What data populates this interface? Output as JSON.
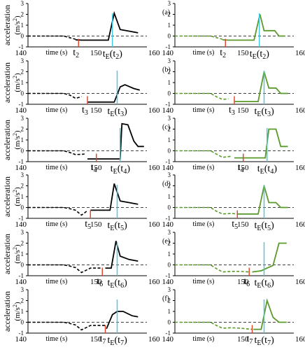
{
  "figure": {
    "ylabel_main": "acceleration",
    "ylabel_unit": "(m/s",
    "ylabel_exp": "2",
    "ylabel_close": ")",
    "xlabel": "time (s)",
    "event_prefix_E": "t",
    "event_prefix_i": "t"
  },
  "colors": {
    "black_curve": "#000000",
    "green_curve": "#5a9a2a",
    "red_marker": "#e04020",
    "cyan_marker": "#40c8e0",
    "zero_line": "#000000"
  },
  "chart_data": [
    {
      "panel": "a",
      "side": "left",
      "type": "line",
      "ylim": [
        -1,
        3
      ],
      "yticks": [
        "3",
        "2",
        "1",
        "0",
        "-1"
      ],
      "xlim": [
        140,
        160
      ],
      "xticks": [
        "140",
        "150",
        "160"
      ],
      "event": "2",
      "marker_red_x": 148.5,
      "marker_cyan_x": 154.2,
      "dashed": [
        [
          140,
          0
        ],
        [
          146,
          0
        ],
        [
          147,
          -0.15
        ],
        [
          148,
          -0.3
        ]
      ],
      "solid": [
        [
          148,
          -0.35
        ],
        [
          149,
          -0.38
        ],
        [
          153.5,
          -0.38
        ],
        [
          154.5,
          2.1
        ],
        [
          155.5,
          0.6
        ],
        [
          157,
          0.45
        ],
        [
          158.5,
          0.3
        ]
      ],
      "show_xlabel": true,
      "show_ylabel": false
    },
    {
      "panel": "a",
      "side": "right",
      "type": "line",
      "ylim": [
        -1,
        3
      ],
      "yticks": [
        "3",
        "2",
        "1",
        "0",
        "-1"
      ],
      "xlim": [
        140,
        160
      ],
      "xticks": [
        "140",
        "150",
        "160"
      ],
      "event": "2",
      "marker_red_x": 148.5,
      "marker_cyan_x": 154.2,
      "dashed": [
        [
          140,
          0
        ],
        [
          146,
          0
        ],
        [
          147,
          -0.15
        ],
        [
          148,
          -0.3
        ]
      ],
      "solid": [
        [
          148,
          -0.35
        ],
        [
          149,
          -0.38
        ],
        [
          153.3,
          -0.38
        ],
        [
          154.3,
          2.0
        ],
        [
          155,
          0.5
        ],
        [
          156.8,
          0.5
        ],
        [
          157.5,
          0.0
        ],
        [
          158.5,
          0.0
        ]
      ],
      "show_xlabel": true,
      "show_ylabel": false
    },
    {
      "panel": "b",
      "side": "left",
      "type": "line",
      "ylim": [
        -1,
        3
      ],
      "yticks": [
        "3",
        "2",
        "1",
        "0",
        "-1"
      ],
      "xlim": [
        140,
        160
      ],
      "xticks": [
        "140",
        "150",
        "160"
      ],
      "event": "3",
      "marker_red_x": 150,
      "marker_cyan_x": 155,
      "dashed": [
        [
          140,
          0
        ],
        [
          146,
          0
        ],
        [
          147,
          -0.15
        ],
        [
          148,
          -0.45
        ],
        [
          149,
          -0.3
        ]
      ],
      "solid": [
        [
          150,
          -0.8
        ],
        [
          154.5,
          -0.8
        ],
        [
          155.5,
          0.6
        ],
        [
          156.3,
          0.8
        ],
        [
          157.8,
          0.45
        ],
        [
          158.8,
          0.3
        ]
      ],
      "show_xlabel": false,
      "show_ylabel": true
    },
    {
      "panel": "b",
      "side": "right",
      "type": "line",
      "ylim": [
        -1,
        3
      ],
      "yticks": [
        "3",
        "2",
        "1",
        "0",
        "-1"
      ],
      "xlim": [
        140,
        160
      ],
      "xticks": [
        "140",
        "150",
        "160"
      ],
      "event": "3",
      "marker_red_x": 150,
      "marker_cyan_x": 155,
      "dashed": [
        [
          140,
          0
        ],
        [
          146,
          0
        ],
        [
          147,
          -0.3
        ],
        [
          148,
          -0.55
        ],
        [
          149,
          -0.5
        ]
      ],
      "solid": [
        [
          150,
          -0.75
        ],
        [
          154,
          -0.75
        ],
        [
          155,
          2.0
        ],
        [
          155.8,
          0.5
        ],
        [
          157,
          0.5
        ],
        [
          157.8,
          0.0
        ],
        [
          159,
          0.0
        ]
      ],
      "show_xlabel": false,
      "show_ylabel": false
    },
    {
      "panel": "c",
      "side": "left",
      "type": "line",
      "ylim": [
        -1,
        3
      ],
      "yticks": [
        "3",
        "2",
        "1",
        "0",
        "-1"
      ],
      "xlim": [
        140,
        160
      ],
      "xticks": [
        "140",
        "150",
        "160"
      ],
      "event": "4",
      "marker_red_x": 151.5,
      "marker_cyan_x": 155.5,
      "dashed": [
        [
          140,
          0
        ],
        [
          146,
          0
        ],
        [
          147,
          -0.15
        ],
        [
          148,
          -0.35
        ],
        [
          149.5,
          -0.3
        ]
      ],
      "solid": [
        [
          150,
          -0.75
        ],
        [
          155.5,
          -0.75
        ],
        [
          155.8,
          2.5
        ],
        [
          156.8,
          2.4
        ],
        [
          157.8,
          0.9
        ],
        [
          158.5,
          0.4
        ],
        [
          159.5,
          0.4
        ]
      ],
      "show_xlabel": true,
      "show_ylabel": false
    },
    {
      "panel": "c",
      "side": "right",
      "type": "line",
      "ylim": [
        -1,
        3
      ],
      "yticks": [
        "3",
        "2",
        "1",
        "0",
        "-1"
      ],
      "xlim": [
        140,
        160
      ],
      "xticks": [
        "140",
        "150",
        "160"
      ],
      "event": "4",
      "marker_red_x": 151.5,
      "marker_cyan_x": 155.5,
      "dashed": [
        [
          140,
          0
        ],
        [
          146,
          0
        ],
        [
          147,
          -0.3
        ],
        [
          148,
          -0.6
        ],
        [
          149.5,
          -0.5
        ]
      ],
      "solid": [
        [
          150,
          -0.65
        ],
        [
          155.2,
          -0.65
        ],
        [
          155.8,
          2.0
        ],
        [
          157,
          2.0
        ],
        [
          157.8,
          0.4
        ],
        [
          159,
          0.4
        ]
      ],
      "show_xlabel": false,
      "show_ylabel": false
    },
    {
      "panel": "d",
      "side": "left",
      "type": "line",
      "ylim": [
        -1,
        3
      ],
      "yticks": [
        "3",
        "2",
        "1",
        "0",
        "-1"
      ],
      "xlim": [
        140,
        160
      ],
      "xticks": [
        "140",
        "150",
        "160"
      ],
      "event": "5",
      "marker_red_x": 150.5,
      "marker_cyan_x": 155,
      "dashed": [
        [
          140,
          0
        ],
        [
          146,
          0
        ],
        [
          147,
          -0.1
        ],
        [
          148,
          -0.25
        ],
        [
          149,
          -0.7
        ],
        [
          150,
          -0.3
        ]
      ],
      "solid": [
        [
          150.5,
          -0.25
        ],
        [
          153.8,
          -0.25
        ],
        [
          154.5,
          2.2
        ],
        [
          155.5,
          0.6
        ],
        [
          157,
          0.45
        ],
        [
          158.5,
          0.3
        ]
      ],
      "show_xlabel": false,
      "show_ylabel": true
    },
    {
      "panel": "d",
      "side": "right",
      "type": "line",
      "ylim": [
        -1,
        3
      ],
      "yticks": [
        "3",
        "2",
        "1",
        "0",
        "-1"
      ],
      "xlim": [
        140,
        160
      ],
      "xticks": [
        "140",
        "150",
        "160"
      ],
      "event": "5",
      "marker_red_x": 150.5,
      "marker_cyan_x": 155,
      "dashed": [
        [
          140,
          0
        ],
        [
          146,
          0
        ],
        [
          147,
          -0.35
        ],
        [
          148,
          -0.6
        ],
        [
          149.5,
          -0.55
        ],
        [
          150.5,
          -0.6
        ]
      ],
      "solid": [
        [
          150.5,
          -0.6
        ],
        [
          154,
          -0.6
        ],
        [
          155,
          2.0
        ],
        [
          155.8,
          0.45
        ],
        [
          157,
          0.45
        ],
        [
          157.8,
          0.0
        ],
        [
          159,
          0.0
        ]
      ],
      "show_xlabel": true,
      "show_ylabel": false
    },
    {
      "panel": "e",
      "side": "left",
      "type": "line",
      "ylim": [
        -1,
        3
      ],
      "yticks": [
        "3",
        "2",
        "1",
        "0",
        "-1"
      ],
      "xlim": [
        140,
        160
      ],
      "xticks": [
        "140",
        "150",
        "160"
      ],
      "event": "6",
      "marker_red_x": 152.5,
      "marker_cyan_x": 155,
      "dashed": [
        [
          140,
          0
        ],
        [
          146,
          0
        ],
        [
          147,
          -0.1
        ],
        [
          148,
          -0.25
        ],
        [
          149,
          -0.7
        ],
        [
          150.5,
          -0.3
        ],
        [
          152.5,
          -0.3
        ]
      ],
      "solid": [
        [
          153,
          -0.3
        ],
        [
          154,
          -0.3
        ],
        [
          154.8,
          2.2
        ],
        [
          155.5,
          0.8
        ],
        [
          157,
          0.5
        ],
        [
          158.5,
          0.35
        ]
      ],
      "show_xlabel": true,
      "show_ylabel": false
    },
    {
      "panel": "e",
      "side": "right",
      "type": "line",
      "ylim": [
        -1,
        3
      ],
      "yticks": [
        "3",
        "2",
        "1",
        "0",
        "-1"
      ],
      "xlim": [
        140,
        160
      ],
      "xticks": [
        "140",
        "150",
        "160"
      ],
      "event": "6",
      "marker_red_x": 152.5,
      "marker_cyan_x": 155,
      "dashed": [
        [
          140,
          0
        ],
        [
          146,
          0
        ],
        [
          147,
          -0.35
        ],
        [
          148,
          -0.65
        ],
        [
          149.5,
          -0.6
        ],
        [
          151,
          -0.6
        ],
        [
          152.5,
          -0.65
        ]
      ],
      "solid": [
        [
          153,
          -0.65
        ],
        [
          154.5,
          -0.55
        ],
        [
          155.5,
          -0.3
        ],
        [
          156.5,
          -0.05
        ],
        [
          157.5,
          2.0
        ],
        [
          158.8,
          2.0
        ]
      ],
      "show_xlabel": false,
      "show_ylabel": false
    },
    {
      "panel": "f",
      "side": "left",
      "type": "line",
      "ylim": [
        -1,
        3
      ],
      "yticks": [
        "3",
        "2",
        "1",
        "0",
        "-1"
      ],
      "xlim": [
        140,
        160
      ],
      "xticks": [
        "140",
        "150",
        "160"
      ],
      "event": "7",
      "marker_red_x": 153,
      "marker_cyan_x": 155,
      "dashed": [
        [
          140,
          0
        ],
        [
          146,
          0
        ],
        [
          147,
          -0.1
        ],
        [
          148,
          -0.25
        ],
        [
          149,
          -0.7
        ],
        [
          150.5,
          -0.3
        ],
        [
          153,
          -0.3
        ]
      ],
      "solid": [
        [
          153.2,
          -0.6
        ],
        [
          154.2,
          0.7
        ],
        [
          155,
          1.0
        ],
        [
          156,
          1.0
        ],
        [
          157.5,
          0.6
        ],
        [
          158.5,
          0.5
        ]
      ],
      "show_xlabel": true,
      "show_ylabel": true
    },
    {
      "panel": "f",
      "side": "right",
      "type": "line",
      "ylim": [
        -1,
        3
      ],
      "yticks": [
        "3",
        "2",
        "1",
        "0",
        "-1"
      ],
      "xlim": [
        140,
        160
      ],
      "xticks": [
        "140",
        "150",
        "160"
      ],
      "event": "7",
      "marker_red_x": 153,
      "marker_cyan_x": 155,
      "dashed": [
        [
          140,
          0
        ],
        [
          146,
          0
        ],
        [
          147,
          -0.3
        ],
        [
          148,
          -0.55
        ],
        [
          149.5,
          -0.5
        ],
        [
          151,
          -0.55
        ],
        [
          153,
          -0.65
        ]
      ],
      "solid": [
        [
          153.2,
          -0.65
        ],
        [
          154.5,
          -0.65
        ],
        [
          155.5,
          2.0
        ],
        [
          156.5,
          0.45
        ],
        [
          157.5,
          0.0
        ],
        [
          158.8,
          0.0
        ]
      ],
      "show_xlabel": true,
      "show_ylabel": false
    }
  ]
}
